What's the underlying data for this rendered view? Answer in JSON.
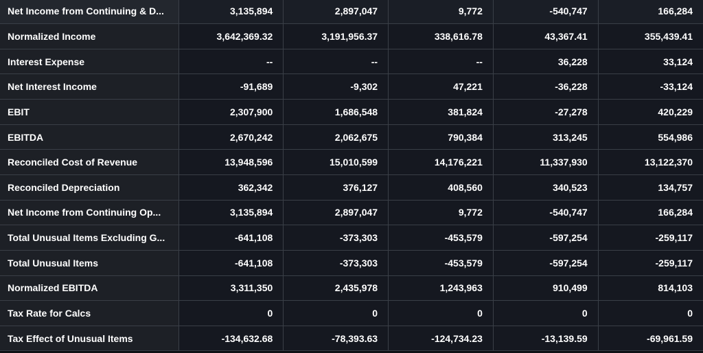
{
  "table": {
    "rows": [
      {
        "label": "Net Income from Continuing & D...",
        "values": [
          "3,135,894",
          "2,897,047",
          "9,772",
          "-540,747",
          "166,284"
        ]
      },
      {
        "label": "Normalized Income",
        "values": [
          "3,642,369.32",
          "3,191,956.37",
          "338,616.78",
          "43,367.41",
          "355,439.41"
        ]
      },
      {
        "label": "Interest Expense",
        "values": [
          "--",
          "--",
          "--",
          "36,228",
          "33,124"
        ]
      },
      {
        "label": "Net Interest Income",
        "values": [
          "-91,689",
          "-9,302",
          "47,221",
          "-36,228",
          "-33,124"
        ]
      },
      {
        "label": "EBIT",
        "values": [
          "2,307,900",
          "1,686,548",
          "381,824",
          "-27,278",
          "420,229"
        ]
      },
      {
        "label": "EBITDA",
        "values": [
          "2,670,242",
          "2,062,675",
          "790,384",
          "313,245",
          "554,986"
        ]
      },
      {
        "label": "Reconciled Cost of Revenue",
        "values": [
          "13,948,596",
          "15,010,599",
          "14,176,221",
          "11,337,930",
          "13,122,370"
        ]
      },
      {
        "label": "Reconciled Depreciation",
        "values": [
          "362,342",
          "376,127",
          "408,560",
          "340,523",
          "134,757"
        ]
      },
      {
        "label": "Net Income from Continuing Op...",
        "values": [
          "3,135,894",
          "2,897,047",
          "9,772",
          "-540,747",
          "166,284"
        ]
      },
      {
        "label": "Total Unusual Items Excluding G...",
        "values": [
          "-641,108",
          "-373,303",
          "-453,579",
          "-597,254",
          "-259,117"
        ]
      },
      {
        "label": "Total Unusual Items",
        "values": [
          "-641,108",
          "-373,303",
          "-453,579",
          "-597,254",
          "-259,117"
        ]
      },
      {
        "label": "Normalized EBITDA",
        "values": [
          "3,311,350",
          "2,435,978",
          "1,243,963",
          "910,499",
          "814,103"
        ]
      },
      {
        "label": "Tax Rate for Calcs",
        "values": [
          "0",
          "0",
          "0",
          "0",
          "0"
        ]
      },
      {
        "label": "Tax Effect of Unusual Items",
        "values": [
          "-134,632.68",
          "-78,393.63",
          "-124,734.23",
          "-13,139.59",
          "-69,961.59"
        ]
      }
    ]
  }
}
